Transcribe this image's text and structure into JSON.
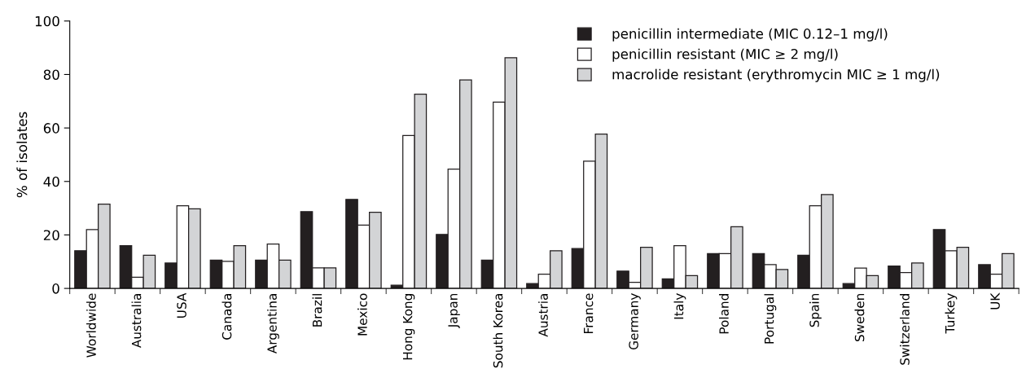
{
  "chart_data": {
    "type": "bar",
    "ylabel": "% of isolates",
    "categories": [
      "Worldwide",
      "Australia",
      "USA",
      "Canada",
      "Argentina",
      "Brazil",
      "Mexico",
      "Hong Kong",
      "Japan",
      "South Korea",
      "Austria",
      "France",
      "Germany",
      "Italy",
      "Poland",
      "Portugal",
      "Spain",
      "Sweden",
      "Switzerland",
      "Turkey",
      "UK"
    ],
    "series": [
      {
        "name": "penicillin intermediate (MIC 0.12–1 mg/l)",
        "color": "#231f20",
        "values": [
          14.1,
          16,
          9.5,
          10.6,
          10.6,
          28.7,
          33.3,
          1.2,
          20.2,
          10.6,
          1.8,
          14.9,
          6.5,
          3.6,
          13,
          13,
          12.4,
          1.8,
          8.4,
          22,
          8.9
        ]
      },
      {
        "name": "penicillin resistant (MIC ≥ 2 mg/l)",
        "color": "#ffffff",
        "values": [
          22,
          4.2,
          30.9,
          10.1,
          16.6,
          7.7,
          23.7,
          57.2,
          44.6,
          69.7,
          5.3,
          47.6,
          2.3,
          16,
          13,
          8.9,
          30.9,
          7.6,
          5.9,
          14.1,
          5.3
        ]
      },
      {
        "name": "macrolide resistant (erythromycin MIC ≥ 1 mg/l)",
        "color": "#d3d4d6",
        "values": [
          31.5,
          12.4,
          29.8,
          16,
          10.6,
          7.7,
          28.5,
          72.6,
          78,
          86.3,
          14.1,
          57.7,
          15.4,
          4.8,
          23.1,
          7.1,
          35.1,
          4.8,
          9.5,
          15.4,
          13
        ]
      }
    ],
    "ylim": [
      0,
      100
    ],
    "yticks": [
      0,
      20,
      40,
      60,
      80,
      100
    ],
    "grid": false,
    "legend": "top right"
  }
}
